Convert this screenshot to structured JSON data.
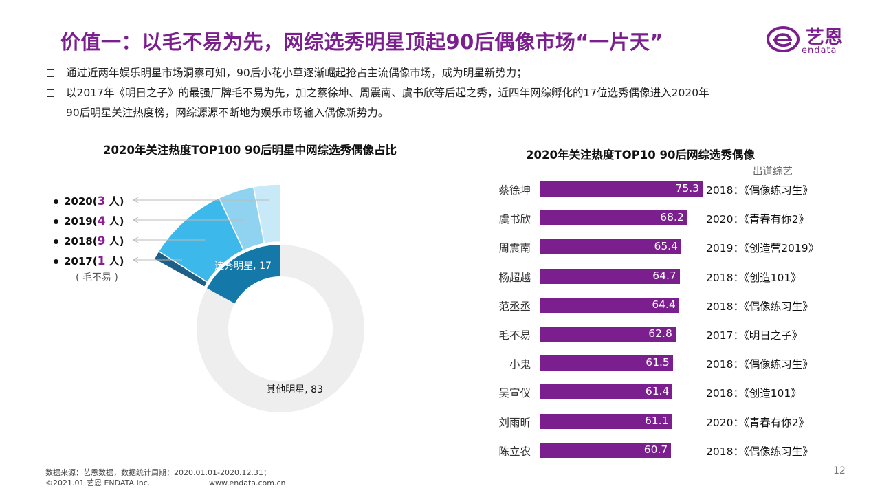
{
  "title": "价值一：以毛不易为先，网综选秀明星顶起90后偶像市场“一片天”",
  "logo": {
    "cn": "艺恩",
    "en": "endata"
  },
  "bullets": [
    "通过近两年娱乐明星市场洞察可知，90后小花小草逐渐崛起抢占主流偶像市场，成为明星新势力；",
    "以2017年《明日之子》的最强厂牌毛不易为先，加之蔡徐坤、周震南、虞书欣等后起之秀，近四年网综孵化的17位选秀偶像进入2020年",
    "90后明星关注热度榜，网综源源不断地为娱乐市场输入偶像新势力。"
  ],
  "left_chart": {
    "title": "2020年关注热度TOP100 90后明星中网综选秀偶像占比",
    "legend": [
      {
        "year": "2020(",
        "num": "3",
        "suffix": " 人)"
      },
      {
        "year": "2019(",
        "num": "4",
        "suffix": " 人)"
      },
      {
        "year": "2018(",
        "num": "9",
        "suffix": " 人)"
      },
      {
        "year": "2017(",
        "num": "1",
        "suffix": " 人)"
      }
    ],
    "note": "( 毛不易 )",
    "label_selected": "选秀明星, 17",
    "label_other": "其他明星, 83"
  },
  "right_chart": {
    "title": "2020年关注热度TOP10 90后网综选秀偶像",
    "col_label": "出道综艺"
  },
  "chart_data": [
    {
      "type": "pie",
      "title": "2020年关注热度TOP100 90后明星中网综选秀偶像占比",
      "slices": [
        {
          "name": "选秀明星",
          "value": 17
        },
        {
          "name": "其他明星",
          "value": 83
        }
      ],
      "breakdown": [
        {
          "name": "2020",
          "value": 3
        },
        {
          "name": "2019",
          "value": 4
        },
        {
          "name": "2018",
          "value": 9
        },
        {
          "name": "2017",
          "value": 1
        }
      ],
      "colors": {
        "selected": "#1479a8",
        "other": "#eeeeee",
        "y2020": "#c8e9f8",
        "y2019": "#8fd3f1",
        "y2018": "#3cb8ea",
        "y2017": "#1d5f86"
      }
    },
    {
      "type": "bar",
      "title": "2020年关注热度TOP10 90后网综选秀偶像",
      "orientation": "horizontal",
      "categories": [
        "蔡徐坤",
        "虞书欣",
        "周震南",
        "杨超越",
        "范丞丞",
        "毛不易",
        "小鬼",
        "吴宣仪",
        "刘雨昕",
        "陈立农"
      ],
      "values": [
        75.3,
        68.2,
        65.4,
        64.7,
        64.4,
        62.8,
        61.5,
        61.4,
        61.1,
        60.7
      ],
      "value_labels": [
        "75.3",
        "68.2",
        "65.4",
        "64.7",
        "64.4",
        "62.8",
        "61.5",
        "61.4",
        "61.1",
        "60.7"
      ],
      "shows": [
        "2018：《偶像练习生》",
        "2020：《青春有你2》",
        "2019：《创造营2019》",
        "2018：《创造101》",
        "2018：《偶像练习生》",
        "2017：《明日之子》",
        "2018：《偶像练习生》",
        "2018：《创造101》",
        "2020：《青春有你2》",
        "2018：《偶像练习生》"
      ],
      "color": "#7b1f8e"
    }
  ],
  "footer": {
    "source": "数据来源：艺恩数据，数据统计周期：2020.01.01-2020.12.31；",
    "copyright": "©2021.01 艺恩 ENDATA Inc.",
    "url": "www.endata.com.cn"
  },
  "page_number": "12"
}
